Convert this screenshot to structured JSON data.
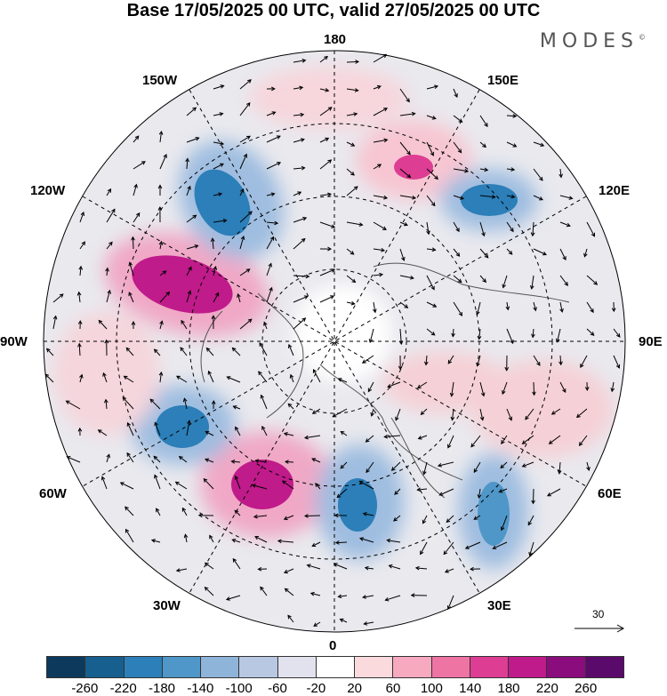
{
  "header": {
    "title": "Base 17/05/2025 00 UTC, valid 27/05/2025 00 UTC",
    "brand": "MODES",
    "brand_mark": "©"
  },
  "map": {
    "projection": "north-polar-stereographic",
    "longitude_labels": {
      "n": "180",
      "s": "0",
      "e": "90E",
      "w": "90W",
      "ne1": "150E",
      "ne2": "120E",
      "nw1": "150W",
      "nw2": "120W",
      "se1": "60E",
      "se2": "30E",
      "sw1": "60W",
      "sw2": "30W"
    },
    "vector_reference": {
      "length_label": "30"
    },
    "colors": {
      "coast": "#555555",
      "grid": "#000000",
      "wind_arrow": "#000000"
    }
  },
  "colorbar": {
    "ticks": [
      "-260",
      "-220",
      "-180",
      "-140",
      "-100",
      "-60",
      "-20",
      "20",
      "60",
      "100",
      "140",
      "180",
      "220",
      "260"
    ],
    "colors": [
      "#0d3a5c",
      "#165f8e",
      "#2c7fb8",
      "#4f97c8",
      "#8fb4d9",
      "#b8c8e3",
      "#e2e2ef",
      "#ffffff",
      "#fbdadd",
      "#f7a9bf",
      "#ee74a4",
      "#dd3d93",
      "#c01b8a",
      "#8a0c7d",
      "#5a0a6b"
    ]
  }
}
